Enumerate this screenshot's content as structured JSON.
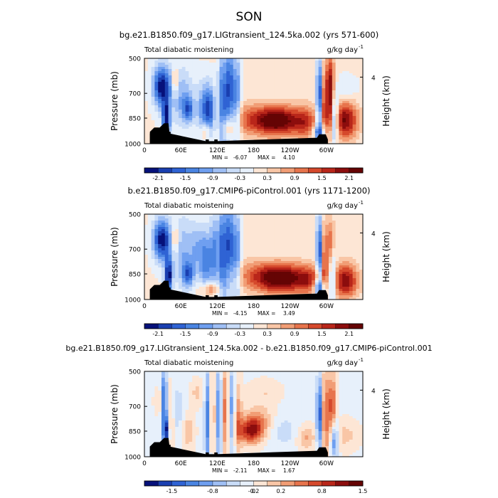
{
  "page_title": "SON",
  "chart_data": [
    {
      "type": "heatmap",
      "title": "bg.e21.B1850.f09_g17.LIGtransient_124.5ka.002 (yrs 571-600)",
      "left_label": "Total diabatic moistening",
      "right_label": "g/kg day",
      "right_label_exp": "-1",
      "ylabel": "Pressure (mb)",
      "y2label": "Height (km)",
      "y2ticks": [
        "4"
      ],
      "yticks": [
        "500",
        "700",
        "850",
        "1000"
      ],
      "xticks": [
        "0",
        "60E",
        "120E",
        "180",
        "120W",
        "60W"
      ],
      "stats": {
        "min_label": "MIN =",
        "min": "-6.07",
        "max_label": "MAX =",
        "max": "4.10"
      },
      "colorbar_ticks": [
        "-2.1",
        "-1.5",
        "-0.9",
        "-0.3",
        "0.3",
        "0.9",
        "1.5",
        "2.1"
      ],
      "colorbar_colors": [
        "#06117a",
        "#1a3fb0",
        "#2f63d4",
        "#4a84e2",
        "#6f9ff0",
        "#9fbff5",
        "#c9dcf8",
        "#e7f0fb",
        "#fde6d5",
        "#f9c6a6",
        "#f19d75",
        "#e7744c",
        "#d5492c",
        "#b9261a",
        "#8c0d0d",
        "#650404"
      ],
      "zlim": [
        -2.4,
        2.4
      ],
      "features": [
        {
          "x": 0.08,
          "y": 0.33,
          "sx": 0.028,
          "sy": 0.17,
          "v": -2.4
        },
        {
          "x": 0.1,
          "y": 0.72,
          "sx": 0.012,
          "sy": 0.14,
          "v": -2.5
        },
        {
          "x": 0.14,
          "y": 0.28,
          "sx": 0.01,
          "sy": 0.12,
          "v": 1.1
        },
        {
          "x": 0.17,
          "y": 0.45,
          "sx": 0.04,
          "sy": 0.25,
          "v": -0.9
        },
        {
          "x": 0.2,
          "y": 0.6,
          "sx": 0.018,
          "sy": 0.1,
          "v": -1.4
        },
        {
          "x": 0.28,
          "y": 0.6,
          "sx": 0.025,
          "sy": 0.22,
          "v": -1.5
        },
        {
          "x": 0.3,
          "y": 0.6,
          "sx": 0.015,
          "sy": 0.18,
          "v": -0.9
        },
        {
          "x": 0.28,
          "y": 0.85,
          "sx": 0.015,
          "sy": 0.08,
          "v": 0.9
        },
        {
          "x": 0.36,
          "y": 0.5,
          "sx": 0.015,
          "sy": 0.4,
          "v": -1.8
        },
        {
          "x": 0.39,
          "y": 0.35,
          "sx": 0.01,
          "sy": 0.35,
          "v": -1.7
        },
        {
          "x": 0.42,
          "y": 0.45,
          "sx": 0.015,
          "sy": 0.35,
          "v": -1.5
        },
        {
          "x": 0.38,
          "y": 0.82,
          "sx": 0.02,
          "sy": 0.08,
          "v": 0.9
        },
        {
          "x": 0.46,
          "y": 0.7,
          "sx": 0.05,
          "sy": 0.14,
          "v": 0.6
        },
        {
          "x": 0.6,
          "y": 0.73,
          "sx": 0.08,
          "sy": 0.12,
          "v": 2.6
        },
        {
          "x": 0.74,
          "y": 0.75,
          "sx": 0.04,
          "sy": 0.14,
          "v": 1.1
        },
        {
          "x": 0.8,
          "y": 0.45,
          "sx": 0.008,
          "sy": 0.3,
          "v": -2.4
        },
        {
          "x": 0.8,
          "y": 0.86,
          "sx": 0.02,
          "sy": 0.07,
          "v": -1.6
        },
        {
          "x": 0.82,
          "y": 0.6,
          "sx": 0.012,
          "sy": 0.3,
          "v": 0.9
        },
        {
          "x": 0.85,
          "y": 0.4,
          "sx": 0.015,
          "sy": 0.3,
          "v": 2.2
        },
        {
          "x": 0.87,
          "y": 0.7,
          "sx": 0.012,
          "sy": 0.2,
          "v": -2.0
        },
        {
          "x": 0.92,
          "y": 0.72,
          "sx": 0.04,
          "sy": 0.16,
          "v": 2.1
        },
        {
          "x": 0.92,
          "y": 0.4,
          "sx": 0.04,
          "sy": 0.12,
          "v": -0.4
        }
      ],
      "baseline": 0.05,
      "terrain": [
        [
          0.025,
          0.86
        ],
        [
          0.045,
          0.81
        ],
        [
          0.07,
          0.81
        ],
        [
          0.09,
          0.76
        ],
        [
          0.11,
          0.76
        ],
        [
          0.115,
          0.88
        ],
        [
          0.28,
          0.97
        ],
        [
          0.33,
          0.97
        ],
        [
          0.79,
          0.93
        ],
        [
          0.8,
          0.89
        ],
        [
          0.83,
          0.89
        ],
        [
          0.84,
          0.95
        ]
      ]
    },
    {
      "type": "heatmap",
      "title": "b.e21.B1850.f09_g17.CMIP6-piControl.001 (yrs 1171-1200)",
      "left_label": "Total diabatic moistening",
      "right_label": "g/kg day",
      "right_label_exp": "-1",
      "ylabel": "Pressure (mb)",
      "y2label": "Height (km)",
      "y2ticks": [
        "4"
      ],
      "yticks": [
        "500",
        "700",
        "850",
        "1000"
      ],
      "xticks": [
        "0",
        "60E",
        "120E",
        "180",
        "120W",
        "60W"
      ],
      "stats": {
        "min_label": "MIN =",
        "min": "-4.15",
        "max_label": "MAX =",
        "max": "3.49"
      },
      "colorbar_ticks": [
        "-2.1",
        "-1.5",
        "-0.9",
        "-0.3",
        "0.3",
        "0.9",
        "1.5",
        "2.1"
      ],
      "colorbar_colors": [
        "#06117a",
        "#1a3fb0",
        "#2f63d4",
        "#4a84e2",
        "#6f9ff0",
        "#9fbff5",
        "#c9dcf8",
        "#e7f0fb",
        "#fde6d5",
        "#f9c6a6",
        "#f19d75",
        "#e7744c",
        "#d5492c",
        "#b9261a",
        "#8c0d0d",
        "#650404"
      ],
      "zlim": [
        -2.4,
        2.4
      ],
      "features": [
        {
          "x": 0.08,
          "y": 0.3,
          "sx": 0.028,
          "sy": 0.17,
          "v": -2.4
        },
        {
          "x": 0.11,
          "y": 0.72,
          "sx": 0.012,
          "sy": 0.14,
          "v": -2.4
        },
        {
          "x": 0.14,
          "y": 0.3,
          "sx": 0.012,
          "sy": 0.12,
          "v": 1.0
        },
        {
          "x": 0.18,
          "y": 0.45,
          "sx": 0.04,
          "sy": 0.3,
          "v": -0.9
        },
        {
          "x": 0.2,
          "y": 0.7,
          "sx": 0.018,
          "sy": 0.1,
          "v": -1.4
        },
        {
          "x": 0.24,
          "y": 0.4,
          "sx": 0.02,
          "sy": 0.2,
          "v": -0.6
        },
        {
          "x": 0.28,
          "y": 0.55,
          "sx": 0.02,
          "sy": 0.25,
          "v": -1.4
        },
        {
          "x": 0.32,
          "y": 0.45,
          "sx": 0.015,
          "sy": 0.3,
          "v": -1.2
        },
        {
          "x": 0.36,
          "y": 0.45,
          "sx": 0.015,
          "sy": 0.4,
          "v": -1.9
        },
        {
          "x": 0.39,
          "y": 0.35,
          "sx": 0.01,
          "sy": 0.35,
          "v": -1.6
        },
        {
          "x": 0.42,
          "y": 0.45,
          "sx": 0.015,
          "sy": 0.35,
          "v": -1.5
        },
        {
          "x": 0.3,
          "y": 0.88,
          "sx": 0.03,
          "sy": 0.06,
          "v": 1.2
        },
        {
          "x": 0.48,
          "y": 0.68,
          "sx": 0.06,
          "sy": 0.12,
          "v": 0.4
        },
        {
          "x": 0.62,
          "y": 0.75,
          "sx": 0.09,
          "sy": 0.12,
          "v": 2.6
        },
        {
          "x": 0.76,
          "y": 0.78,
          "sx": 0.04,
          "sy": 0.12,
          "v": 1.0
        },
        {
          "x": 0.8,
          "y": 0.45,
          "sx": 0.008,
          "sy": 0.3,
          "v": -2.4
        },
        {
          "x": 0.8,
          "y": 0.86,
          "sx": 0.02,
          "sy": 0.07,
          "v": -1.6
        },
        {
          "x": 0.82,
          "y": 0.55,
          "sx": 0.012,
          "sy": 0.3,
          "v": 0.8
        },
        {
          "x": 0.85,
          "y": 0.4,
          "sx": 0.015,
          "sy": 0.25,
          "v": 1.2
        },
        {
          "x": 0.86,
          "y": 0.72,
          "sx": 0.012,
          "sy": 0.2,
          "v": -1.6
        },
        {
          "x": 0.92,
          "y": 0.78,
          "sx": 0.04,
          "sy": 0.14,
          "v": 2.0
        }
      ],
      "baseline": 0.05,
      "terrain": [
        [
          0.025,
          0.88
        ],
        [
          0.045,
          0.83
        ],
        [
          0.07,
          0.83
        ],
        [
          0.09,
          0.78
        ],
        [
          0.11,
          0.78
        ],
        [
          0.115,
          0.88
        ],
        [
          0.28,
          0.97
        ],
        [
          0.33,
          0.97
        ],
        [
          0.79,
          0.93
        ],
        [
          0.8,
          0.89
        ],
        [
          0.83,
          0.89
        ],
        [
          0.84,
          0.95
        ]
      ]
    },
    {
      "type": "heatmap",
      "title": "bg.e21.B1850.f09_g17.LIGtransient_124.5ka.002 - b.e21.B1850.f09_g17.CMIP6-piControl.001",
      "left_label": "Total diabatic moistening",
      "right_label": "g/kg day",
      "right_label_exp": "-1",
      "ylabel": "Pressure (mb)",
      "y2label": "Height (km)",
      "y2ticks": [
        "4"
      ],
      "yticks": [
        "500",
        "700",
        "850",
        "1000"
      ],
      "xticks": [
        "0",
        "60E",
        "120E",
        "180",
        "120W",
        "60W"
      ],
      "stats": {
        "min_label": "MIN =",
        "min": "-2.11",
        "max_label": "MAX =",
        "max": "1.67"
      },
      "colorbar_ticks": [
        "-1.5",
        "-0.8",
        "-0.2",
        "0",
        "0.2",
        "0.8",
        "1.5"
      ],
      "colorbar_colors": [
        "#06117a",
        "#1a3fb0",
        "#2f63d4",
        "#4a84e2",
        "#6f9ff0",
        "#9fbff5",
        "#c9dcf8",
        "#e7f0fb",
        "#fde6d5",
        "#f9c6a6",
        "#f19d75",
        "#e7744c",
        "#d5492c",
        "#b9261a",
        "#8c0d0d",
        "#650404"
      ],
      "zlim": [
        -2.0,
        2.0
      ],
      "features": [
        {
          "x": 0.07,
          "y": 0.35,
          "sx": 0.015,
          "sy": 0.1,
          "v": 0.5
        },
        {
          "x": 0.09,
          "y": 0.35,
          "sx": 0.01,
          "sy": 0.25,
          "v": -1.4
        },
        {
          "x": 0.1,
          "y": 0.7,
          "sx": 0.01,
          "sy": 0.12,
          "v": -1.6
        },
        {
          "x": 0.12,
          "y": 0.55,
          "sx": 0.012,
          "sy": 0.25,
          "v": 0.6
        },
        {
          "x": 0.15,
          "y": 0.45,
          "sx": 0.025,
          "sy": 0.2,
          "v": -0.4
        },
        {
          "x": 0.2,
          "y": 0.7,
          "sx": 0.02,
          "sy": 0.15,
          "v": 0.5
        },
        {
          "x": 0.24,
          "y": 0.25,
          "sx": 0.02,
          "sy": 0.1,
          "v": 0.4
        },
        {
          "x": 0.29,
          "y": 0.55,
          "sx": 0.01,
          "sy": 0.4,
          "v": -1.2
        },
        {
          "x": 0.31,
          "y": 0.5,
          "sx": 0.01,
          "sy": 0.35,
          "v": 0.8
        },
        {
          "x": 0.34,
          "y": 0.5,
          "sx": 0.01,
          "sy": 0.4,
          "v": -1.0
        },
        {
          "x": 0.37,
          "y": 0.45,
          "sx": 0.01,
          "sy": 0.4,
          "v": 0.9
        },
        {
          "x": 0.4,
          "y": 0.45,
          "sx": 0.01,
          "sy": 0.4,
          "v": -0.8
        },
        {
          "x": 0.43,
          "y": 0.55,
          "sx": 0.012,
          "sy": 0.3,
          "v": 0.7
        },
        {
          "x": 0.49,
          "y": 0.7,
          "sx": 0.04,
          "sy": 0.1,
          "v": 1.6
        },
        {
          "x": 0.52,
          "y": 0.55,
          "sx": 0.05,
          "sy": 0.1,
          "v": 0.6
        },
        {
          "x": 0.55,
          "y": 0.25,
          "sx": 0.05,
          "sy": 0.1,
          "v": 0.3
        },
        {
          "x": 0.64,
          "y": 0.7,
          "sx": 0.05,
          "sy": 0.15,
          "v": -0.3
        },
        {
          "x": 0.74,
          "y": 0.78,
          "sx": 0.03,
          "sy": 0.1,
          "v": 0.6
        },
        {
          "x": 0.8,
          "y": 0.5,
          "sx": 0.008,
          "sy": 0.3,
          "v": -1.6
        },
        {
          "x": 0.83,
          "y": 0.5,
          "sx": 0.012,
          "sy": 0.4,
          "v": 0.9
        },
        {
          "x": 0.86,
          "y": 0.4,
          "sx": 0.012,
          "sy": 0.25,
          "v": 1.2
        },
        {
          "x": 0.87,
          "y": 0.8,
          "sx": 0.012,
          "sy": 0.15,
          "v": -1.2
        },
        {
          "x": 0.92,
          "y": 0.75,
          "sx": 0.04,
          "sy": 0.12,
          "v": 0.4
        }
      ],
      "baseline": -0.05,
      "terrain": [
        [
          0.025,
          0.88
        ],
        [
          0.045,
          0.83
        ],
        [
          0.07,
          0.83
        ],
        [
          0.09,
          0.78
        ],
        [
          0.11,
          0.78
        ],
        [
          0.115,
          0.88
        ],
        [
          0.28,
          0.97
        ],
        [
          0.33,
          0.97
        ],
        [
          0.79,
          0.93
        ],
        [
          0.8,
          0.89
        ],
        [
          0.83,
          0.89
        ],
        [
          0.84,
          0.95
        ]
      ]
    }
  ]
}
